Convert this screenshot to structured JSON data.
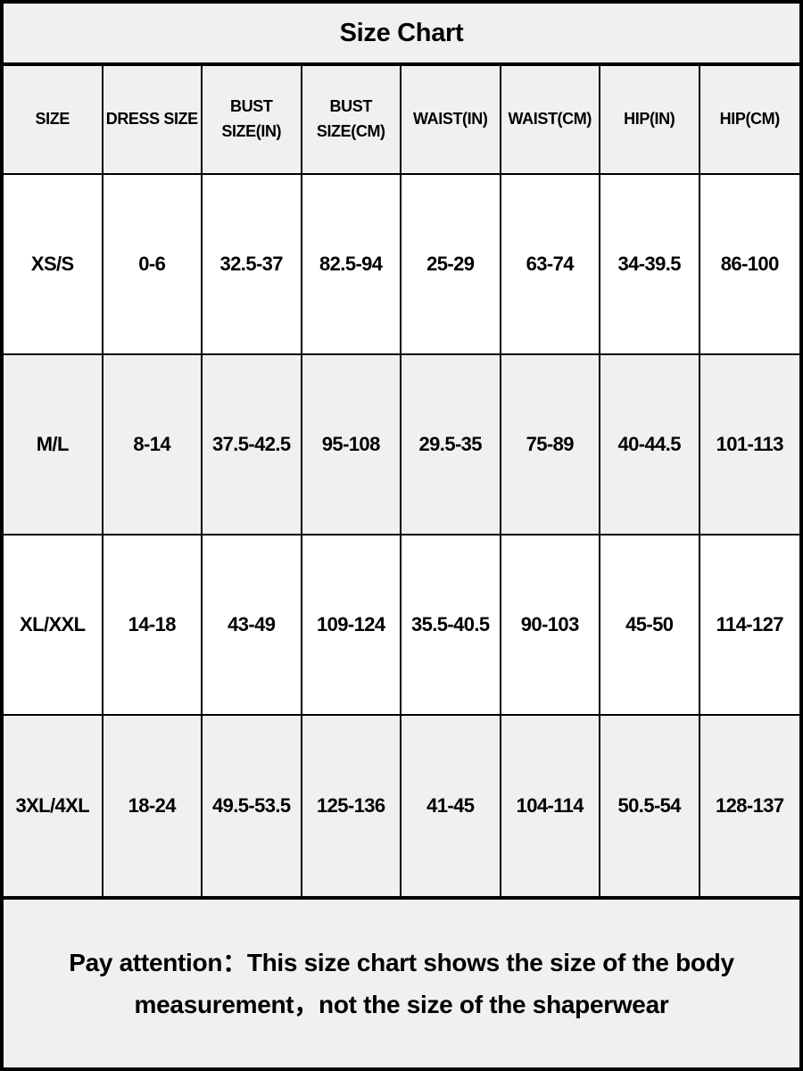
{
  "chart_data": {
    "type": "table",
    "title": "Size Chart",
    "columns": [
      "SIZE",
      "DRESS SIZE",
      "BUST SIZE(IN)",
      "BUST SIZE(CM)",
      "WAIST(IN)",
      "WAIST(CM)",
      "HIP(IN)",
      "HIP(CM)"
    ],
    "rows": [
      [
        "XS/S",
        "0-6",
        "32.5-37",
        "82.5-94",
        "25-29",
        "63-74",
        "34-39.5",
        "86-100"
      ],
      [
        "M/L",
        "8-14",
        "37.5-42.5",
        "95-108",
        "29.5-35",
        "75-89",
        "40-44.5",
        "101-113"
      ],
      [
        "XL/XXL",
        "14-18",
        "43-49",
        "109-124",
        "35.5-40.5",
        "90-103",
        "45-50",
        "114-127"
      ],
      [
        "3XL/4XL",
        "18-24",
        "49.5-53.5",
        "125-136",
        "41-45",
        "104-114",
        "50.5-54",
        "128-137"
      ]
    ]
  },
  "footer": {
    "note": "Pay attention：This size chart shows the size of the body\nmeasurement，not the size of the shaperwear"
  },
  "colors": {
    "background_gray": "#f0f0f0",
    "row_white": "#ffffff",
    "border": "#000000",
    "text": "#000000"
  }
}
